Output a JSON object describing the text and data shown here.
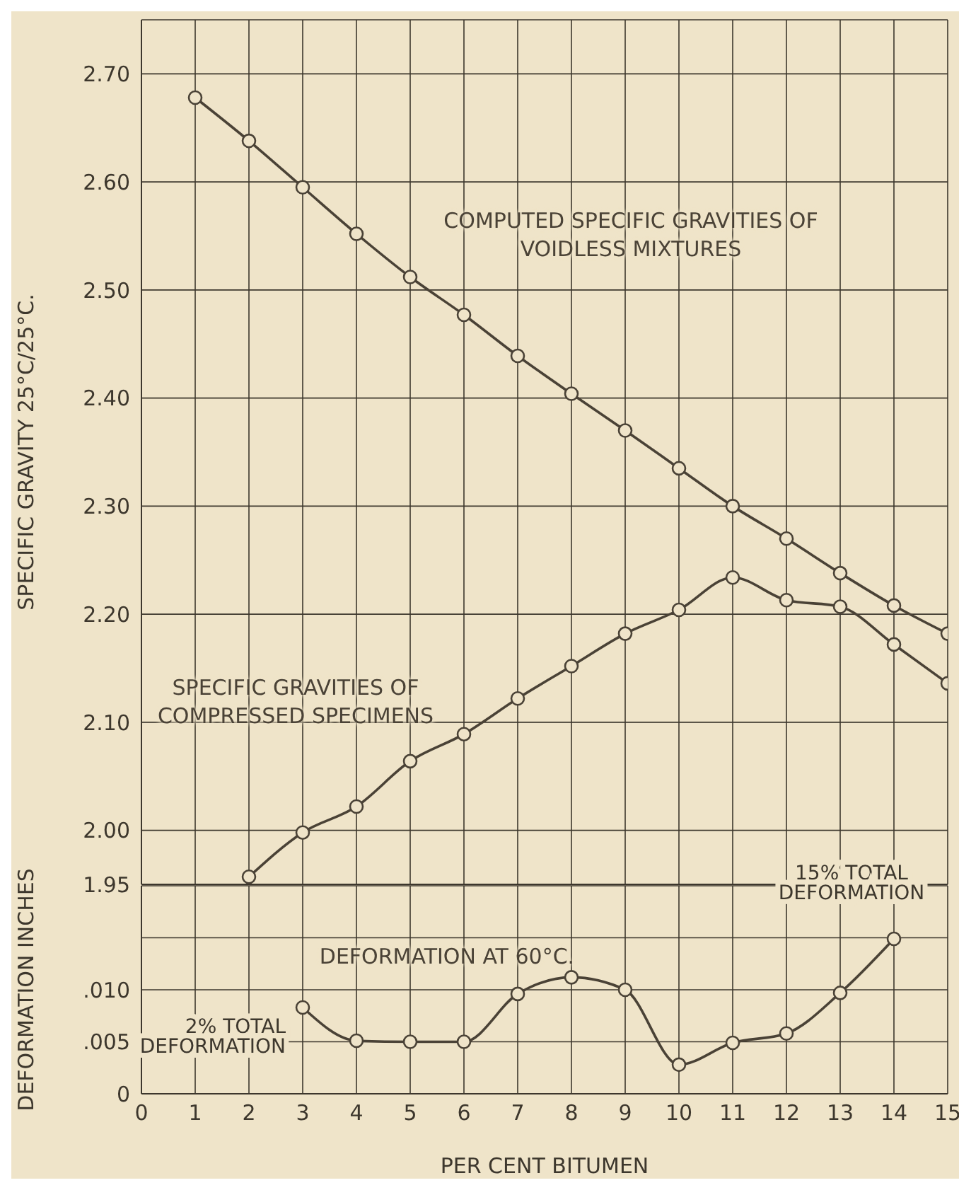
{
  "chart_data": [
    {
      "type": "line",
      "ylabel": "SPECIFIC GRAVITY 25°C/25°C.",
      "x": [
        1,
        2,
        3,
        4,
        5,
        6,
        7,
        8,
        9,
        10,
        11,
        12,
        13,
        14,
        15
      ],
      "xlim": [
        0,
        15
      ],
      "xticks": [
        0,
        1,
        2,
        3,
        4,
        5,
        6,
        7,
        8,
        9,
        10,
        11,
        12,
        13,
        14,
        15
      ],
      "ylim": [
        1.95,
        2.75
      ],
      "yticks": [
        1.95,
        {
          "value": 2.0,
          "label": "2.00"
        },
        {
          "value": 2.1,
          "label": "2.10"
        },
        {
          "value": 2.2,
          "label": "2.20"
        },
        {
          "value": 2.3,
          "label": "2.30"
        },
        {
          "value": 2.4,
          "label": "2.40"
        },
        {
          "value": 2.5,
          "label": "2.50"
        },
        {
          "value": 2.6,
          "label": "2.60"
        },
        {
          "value": 2.7,
          "label": "2.70"
        }
      ],
      "grid": true,
      "marker": "circle",
      "tick_labels": "y",
      "series": [
        {
          "name": "COMPUTED SPECIFIC GRAVITIES OF VOIDLESS MIXTURES",
          "color": "#4a4236",
          "values": [
            2.678,
            2.638,
            2.595,
            2.552,
            2.512,
            2.477,
            2.439,
            2.404,
            2.37,
            2.335,
            2.3,
            2.27,
            2.238,
            2.208,
            2.182
          ]
        },
        {
          "name": "SPECIFIC GRAVITIES OF COMPRESSED SPECIMENS",
          "color": "#4a4236",
          "values": [
            null,
            1.957,
            1.998,
            2.022,
            2.064,
            2.089,
            2.122,
            2.152,
            2.182,
            2.204,
            2.234,
            2.213,
            2.207,
            2.172,
            2.136
          ]
        }
      ]
    },
    {
      "type": "line",
      "xlabel": "PER CENT BITUMEN",
      "ylabel": "DEFORMATION INCHES",
      "x": [
        3,
        4,
        5,
        6,
        7,
        8,
        9,
        10,
        11,
        12,
        13,
        14
      ],
      "xlim": [
        0,
        15
      ],
      "xticks": [
        0,
        1,
        2,
        3,
        4,
        5,
        6,
        7,
        8,
        9,
        10,
        11,
        12,
        13,
        14,
        15
      ],
      "ylim": [
        0,
        0.02
      ],
      "yticks": [
        0,
        {
          "value": 0.005,
          "label": ".005"
        },
        {
          "value": 0.01,
          "label": ".010"
        },
        {
          "value": 0.015,
          "label": null
        }
      ],
      "grid": true,
      "marker": "circle",
      "series": [
        {
          "name": "DEFORMATION AT 60°C.",
          "color": "#4a4236",
          "values": [
            0.0083,
            0.0051,
            0.005,
            0.005,
            0.0096,
            0.0112,
            0.01,
            0.0028,
            0.0049,
            0.0058,
            0.0097,
            0.0149
          ]
        }
      ],
      "annotations": [
        {
          "text": "2% TOTAL DEFORMATION",
          "x": 3,
          "y": 0.0083
        },
        {
          "text": "15% TOTAL DEFORMATION",
          "x": 14,
          "y": 0.0149
        }
      ]
    }
  ]
}
